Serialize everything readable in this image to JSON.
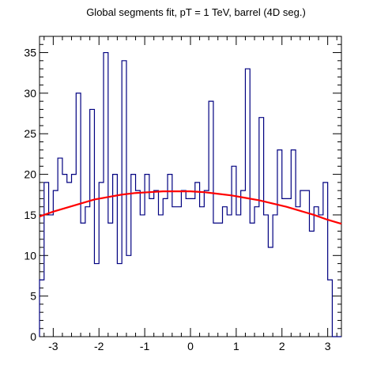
{
  "chart_data": {
    "type": "histogram",
    "title": "Global segments fit, pT = 1 TeV, barrel (4D seg.)",
    "xlabel": "",
    "ylabel": "",
    "xlim": [
      -3.3,
      3.3
    ],
    "ylim": [
      0,
      37
    ],
    "grid": false,
    "x_ticks": [
      -3,
      -2,
      -1,
      0,
      1,
      2,
      3
    ],
    "x_tick_labels": [
      "-3",
      "-2",
      "-1",
      "0",
      "1",
      "2",
      "3"
    ],
    "y_ticks": [
      0,
      5,
      10,
      15,
      20,
      25,
      30,
      35
    ],
    "y_tick_labels": [
      "0",
      "5",
      "10",
      "15",
      "20",
      "25",
      "30",
      "35"
    ],
    "bin_edges": [
      -3.3,
      -3.2,
      -3.1,
      -3.0,
      -2.9,
      -2.8,
      -2.7,
      -2.6,
      -2.5,
      -2.4,
      -2.3,
      -2.2,
      -2.1,
      -2.0,
      -1.9,
      -1.8,
      -1.7,
      -1.6,
      -1.5,
      -1.4,
      -1.3,
      -1.2,
      -1.1,
      -1.0,
      -0.9,
      -0.8,
      -0.7,
      -0.6,
      -0.5,
      -0.4,
      -0.3,
      -0.2,
      -0.1,
      0.0,
      0.1,
      0.2,
      0.3,
      0.4,
      0.5,
      0.6,
      0.7,
      0.8,
      0.9,
      1.0,
      1.1,
      1.2,
      1.3,
      1.4,
      1.5,
      1.6,
      1.7,
      1.8,
      1.9,
      2.0,
      2.1,
      2.2,
      2.3,
      2.4,
      2.5,
      2.6,
      2.7,
      2.8,
      2.9,
      3.0,
      3.1,
      3.2,
      3.3
    ],
    "series": [
      {
        "kind": "histogram",
        "color": "#000080",
        "values": [
          7,
          19,
          15,
          18,
          22,
          20,
          19,
          20,
          30,
          14,
          16,
          28,
          9,
          19,
          35,
          14,
          20,
          9,
          34,
          10,
          20,
          18,
          15,
          20,
          17,
          18,
          15,
          17,
          20,
          16,
          16,
          18,
          17,
          17,
          19,
          16,
          18,
          29,
          14,
          14,
          16,
          15,
          21,
          15,
          18,
          33,
          14,
          16,
          27,
          15,
          11,
          15,
          23,
          17,
          17,
          23,
          16,
          18,
          18,
          13,
          16,
          15,
          19,
          7,
          0,
          0
        ]
      },
      {
        "kind": "fit",
        "color": "#ff0000",
        "x": [
          -3.3,
          -3.0,
          -2.7,
          -2.4,
          -2.1,
          -1.8,
          -1.5,
          -1.2,
          -0.9,
          -0.6,
          -0.3,
          0.0,
          0.3,
          0.6,
          0.9,
          1.2,
          1.5,
          1.8,
          2.1,
          2.4,
          2.7,
          3.0,
          3.3
        ],
        "y": [
          14.8,
          15.4,
          15.9,
          16.4,
          16.9,
          17.2,
          17.5,
          17.7,
          17.8,
          17.9,
          17.9,
          17.9,
          17.8,
          17.6,
          17.4,
          17.1,
          16.8,
          16.4,
          16.0,
          15.5,
          15.0,
          14.4,
          13.9
        ]
      }
    ]
  }
}
